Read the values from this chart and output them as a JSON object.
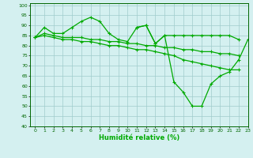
{
  "xlabel": "Humidité relative (%)",
  "background_color": "#d4f0f0",
  "grid_color": "#a0cccc",
  "line_color": "#00aa00",
  "xlim": [
    -0.5,
    23
  ],
  "ylim": [
    40,
    101
  ],
  "yticks": [
    40,
    45,
    50,
    55,
    60,
    65,
    70,
    75,
    80,
    85,
    90,
    95,
    100
  ],
  "xticks": [
    0,
    1,
    2,
    3,
    4,
    5,
    6,
    7,
    8,
    9,
    10,
    11,
    12,
    13,
    14,
    15,
    16,
    17,
    18,
    19,
    20,
    21,
    22,
    23
  ],
  "line1_x": [
    0,
    1,
    2,
    3,
    4,
    5,
    6,
    7,
    8,
    9,
    10,
    11,
    12,
    13,
    14,
    15,
    16,
    17,
    18,
    19,
    20,
    21,
    22
  ],
  "line1_y": [
    84,
    89,
    86,
    86,
    89,
    92,
    94,
    92,
    86,
    83,
    82,
    89,
    90,
    81,
    85,
    85,
    85,
    85,
    85,
    85,
    85,
    85,
    83
  ],
  "line2_x": [
    0,
    1,
    2,
    3,
    4,
    5,
    6,
    7,
    8,
    9,
    10,
    11,
    12,
    13,
    14,
    15,
    16,
    17,
    18,
    19,
    20,
    21,
    22
  ],
  "line2_y": [
    84,
    86,
    85,
    84,
    84,
    84,
    83,
    83,
    82,
    82,
    81,
    81,
    80,
    80,
    79,
    79,
    78,
    78,
    77,
    77,
    76,
    76,
    75
  ],
  "line3_x": [
    0,
    1,
    2,
    3,
    4,
    5,
    6,
    7,
    8,
    9,
    10,
    11,
    12,
    13,
    14,
    15,
    16,
    17,
    18,
    19,
    20,
    21,
    22
  ],
  "line3_y": [
    84,
    85,
    84,
    83,
    83,
    82,
    82,
    81,
    80,
    80,
    79,
    78,
    78,
    77,
    76,
    75,
    73,
    72,
    71,
    70,
    69,
    68,
    68
  ],
  "line4_x": [
    11,
    12,
    13,
    14,
    15,
    16,
    17,
    18,
    19,
    20,
    21,
    22,
    23
  ],
  "line4_y": [
    89,
    90,
    81,
    85,
    62,
    57,
    50,
    50,
    61,
    65,
    67,
    73,
    83
  ]
}
